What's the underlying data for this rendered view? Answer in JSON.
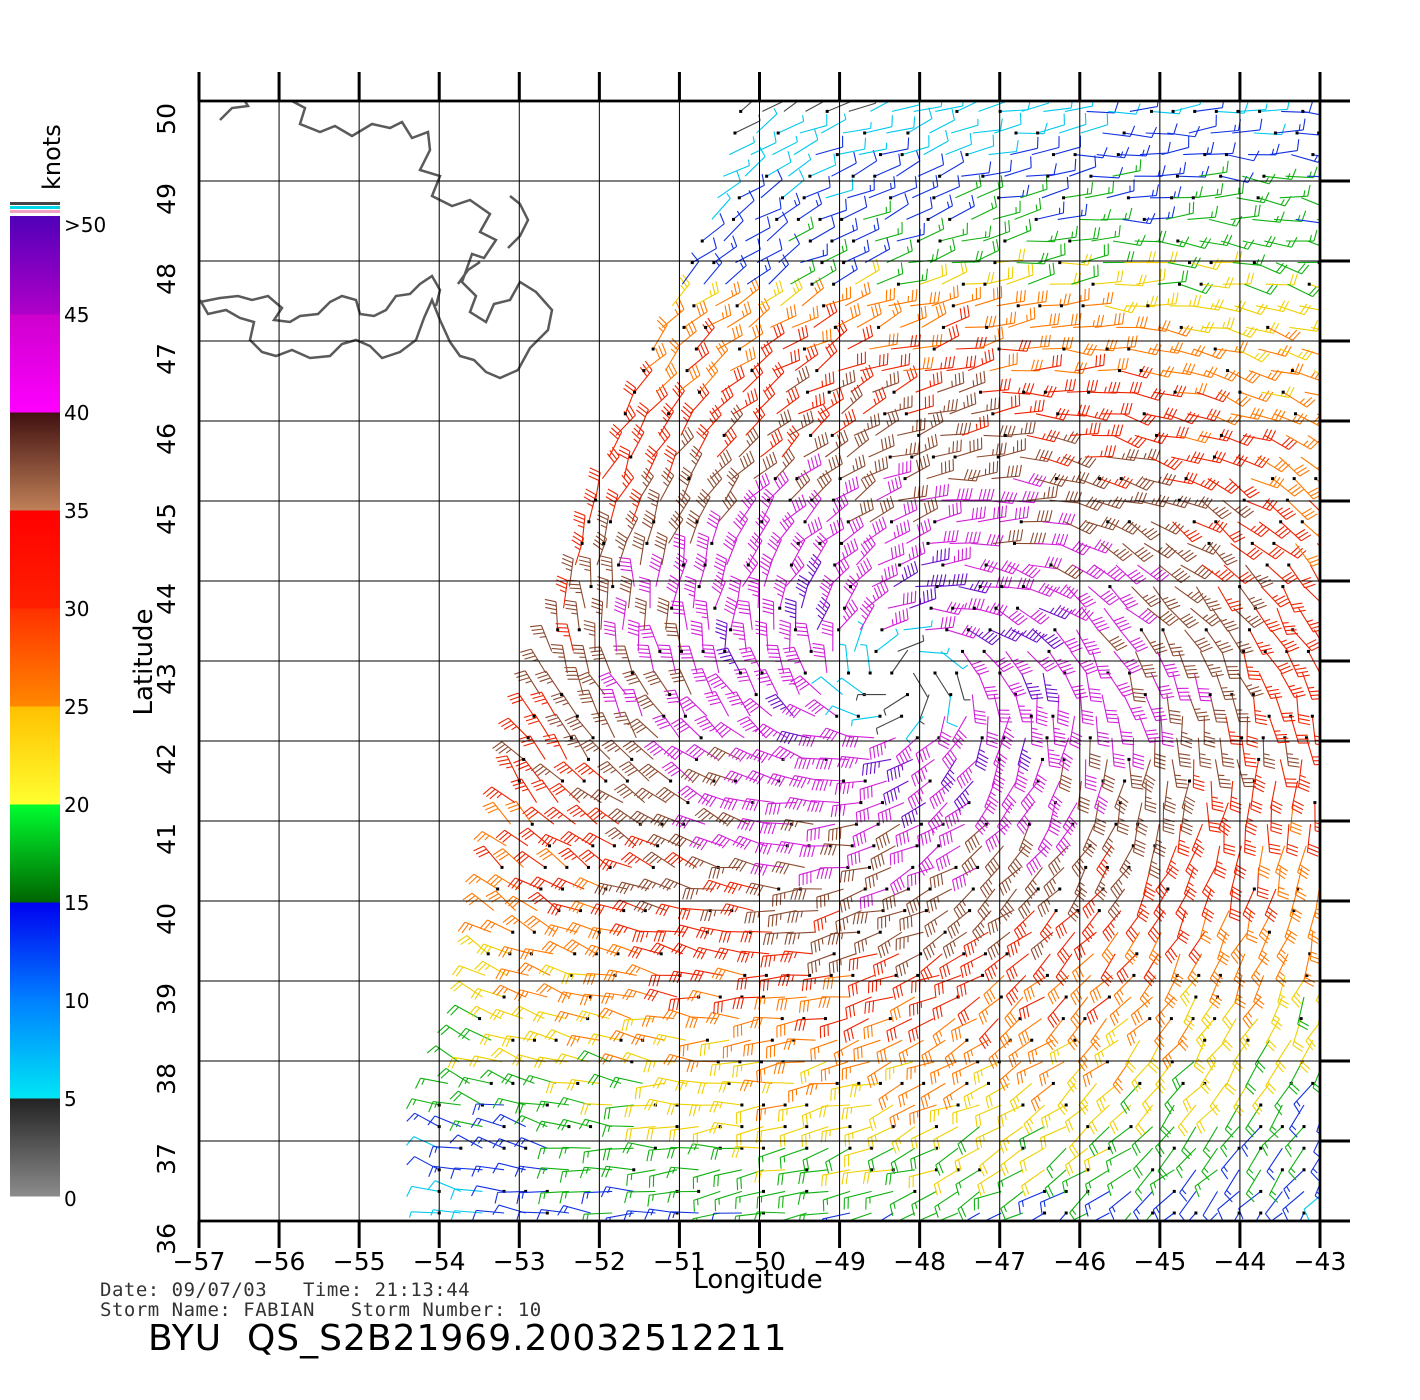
{
  "colorbar": {
    "unit_label": "knots",
    "tick_labels": [
      "0",
      "5",
      "10",
      "15",
      "20",
      "25",
      "30",
      "35",
      "40",
      "45",
      ">50"
    ],
    "bands": [
      {
        "from": 0,
        "to": 5,
        "colors": [
          "#8c8c8c",
          "#222222"
        ]
      },
      {
        "from": 5,
        "to": 10,
        "colors": [
          "#00e6f5",
          "#0080ff"
        ]
      },
      {
        "from": 10,
        "to": 15,
        "colors": [
          "#0080ff",
          "#0000f0"
        ]
      },
      {
        "from": 15,
        "to": 20,
        "colors": [
          "#006400",
          "#00ff30"
        ]
      },
      {
        "from": 20,
        "to": 25,
        "colors": [
          "#ffff30",
          "#ffc000"
        ]
      },
      {
        "from": 25,
        "to": 30,
        "colors": [
          "#ff8800",
          "#ff3000"
        ]
      },
      {
        "from": 30,
        "to": 35,
        "colors": [
          "#ff2000",
          "#ff0000"
        ]
      },
      {
        "from": 35,
        "to": 40,
        "colors": [
          "#c08058",
          "#401010"
        ]
      },
      {
        "from": 40,
        "to": 45,
        "colors": [
          "#ff00ff",
          "#cc00cc"
        ]
      },
      {
        "from": 45,
        "to": 50,
        "colors": [
          "#b000c8",
          "#5000b8"
        ]
      }
    ]
  },
  "chart_data": {
    "type": "wind-vector map",
    "xlabel": "Longitude",
    "ylabel": "Latitude",
    "xlim": [
      -57,
      -43
    ],
    "ylim": [
      36,
      50
    ],
    "x_ticks": [
      "−57",
      "−56",
      "−55",
      "−54",
      "−53",
      "−52",
      "−51",
      "−50",
      "−49",
      "−48",
      "−47",
      "−46",
      "−45",
      "−44",
      "−43"
    ],
    "y_ticks": [
      "36",
      "37",
      "38",
      "39",
      "40",
      "41",
      "42",
      "43",
      "44",
      "45",
      "46",
      "47",
      "48",
      "49",
      "50"
    ],
    "grid": true,
    "storm_center": {
      "lon": -48.3,
      "lat": 42.8
    },
    "swath_west_edge": [
      [
        -54.0,
        36.0
      ],
      [
        -54.0,
        37.5
      ],
      [
        -53.5,
        38.5
      ],
      [
        -53.3,
        40.0
      ],
      [
        -52.9,
        42.0
      ],
      [
        -52.3,
        44.2
      ],
      [
        -51.8,
        45.8
      ],
      [
        -51.2,
        47.2
      ],
      [
        -50.6,
        48.5
      ],
      [
        -50.2,
        50.0
      ]
    ],
    "land_color": "#555555"
  },
  "footer": {
    "date_line": "Date: 09/07/03   Time: 21:13:44",
    "storm_line": "Storm Name: FABIAN   Storm Number: 10",
    "file_id": "BYU  QS_S2B21969.20032512211"
  }
}
